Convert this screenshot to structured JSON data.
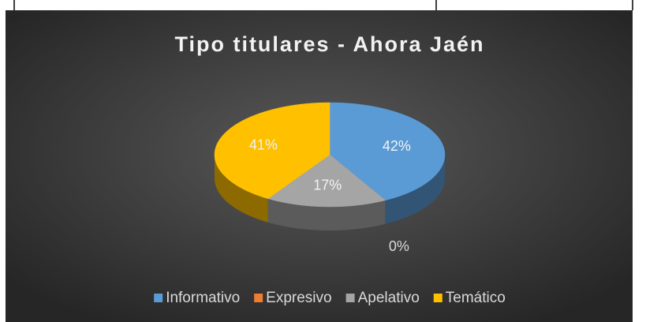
{
  "chart_data": {
    "type": "pie3d",
    "title": "Tipo titulares - Ahora Jaén",
    "categories": [
      "Informativo",
      "Expresivo",
      "Apelativo",
      "Temático"
    ],
    "values": [
      42,
      0,
      17,
      41
    ],
    "value_labels": [
      "42%",
      "0%",
      "17%",
      "41%"
    ],
    "colors": [
      "#5b9bd5",
      "#ed7d31",
      "#a5a5a5",
      "#ffc000"
    ],
    "legend": "bottom"
  }
}
